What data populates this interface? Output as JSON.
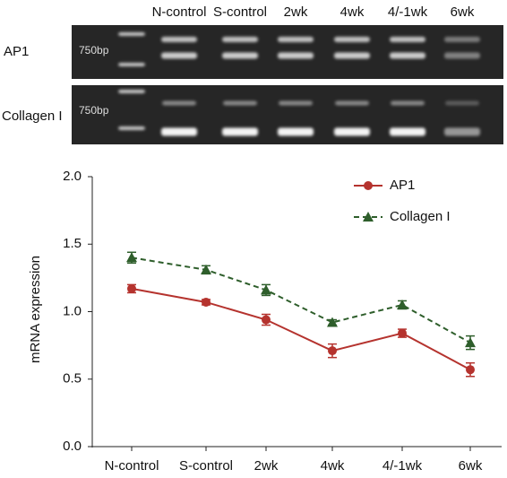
{
  "gel": {
    "lanes": [
      "N-control",
      "S-control",
      "2wk",
      "4wk",
      "4/-1wk",
      "6wk"
    ],
    "rows": [
      {
        "label": "AP1",
        "marker": "750bp"
      },
      {
        "label": "Collagen I",
        "marker": "750bp"
      }
    ]
  },
  "chart_data": {
    "type": "line",
    "y_label": "mRNA expression",
    "categories": [
      "N-control",
      "S-control",
      "2wk",
      "4wk",
      "4/-1wk",
      "6wk"
    ],
    "series": [
      {
        "name": "AP1",
        "color": "#b5332e",
        "marker": "circle",
        "dashed": false,
        "values": [
          1.17,
          1.07,
          0.94,
          0.71,
          0.84,
          0.57
        ],
        "errors": [
          0.03,
          0.02,
          0.04,
          0.05,
          0.03,
          0.05
        ]
      },
      {
        "name": "Collagen I",
        "color": "#2e5e2b",
        "marker": "triangle",
        "dashed": true,
        "values": [
          1.4,
          1.31,
          1.16,
          0.92,
          1.05,
          0.77
        ],
        "errors": [
          0.04,
          0.03,
          0.04,
          0.02,
          0.03,
          0.05
        ]
      }
    ],
    "ylim": [
      0,
      2
    ],
    "yticks": [
      {
        "value": 0,
        "label": "0.0"
      },
      0.5,
      {
        "value": 1,
        "label": "1.0"
      },
      1.5,
      {
        "value": 2,
        "label": "2.0"
      }
    ],
    "legend": "top-right"
  }
}
